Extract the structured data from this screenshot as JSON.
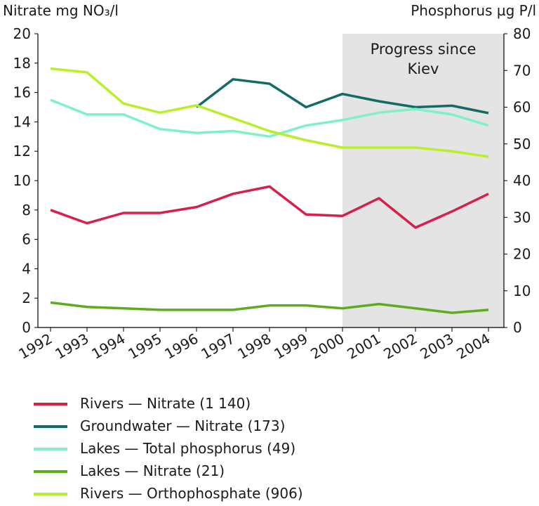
{
  "chart_data": {
    "type": "line",
    "title": "",
    "left_axis_label": "Nitrate mg NO₃/l",
    "right_axis_label": "Phosphorus µg P/l",
    "categories": [
      "1992",
      "1993",
      "1994",
      "1995",
      "1996",
      "1997",
      "1998",
      "1999",
      "2000",
      "2001",
      "2002",
      "2003",
      "2004"
    ],
    "left_ylim": [
      0,
      20
    ],
    "left_ticks": [
      0,
      2,
      4,
      6,
      8,
      10,
      12,
      14,
      16,
      18,
      20
    ],
    "right_ylim": [
      0,
      80
    ],
    "right_ticks": [
      0,
      10,
      20,
      30,
      40,
      50,
      60,
      70,
      80
    ],
    "shaded_region": {
      "from": "2000",
      "to": "2004",
      "label_line1": "Progress since",
      "label_line2": "Kiev"
    },
    "series": [
      {
        "name": "Rivers — Nitrate (1 140)",
        "axis": "left",
        "color": "#d81f4c",
        "values": [
          8.0,
          7.1,
          7.8,
          7.8,
          8.2,
          9.1,
          9.6,
          7.7,
          7.6,
          8.8,
          6.8,
          7.9,
          9.1
        ]
      },
      {
        "name": "Groundwater — Nitrate (173)",
        "axis": "left",
        "color": "#136b66",
        "values": [
          null,
          null,
          null,
          null,
          15.0,
          16.9,
          16.6,
          15.0,
          15.9,
          15.4,
          15.0,
          15.1,
          14.6
        ]
      },
      {
        "name": "Lakes — Total phosphorus (49)",
        "axis": "right",
        "color": "#7ef2c4",
        "values": [
          62,
          58,
          58,
          54,
          53,
          53.5,
          52,
          55,
          56.5,
          58.5,
          59.5,
          58,
          55
        ]
      },
      {
        "name": "Lakes — Nitrate (21)",
        "axis": "left",
        "color": "#5fab1d",
        "values": [
          1.7,
          1.4,
          1.3,
          1.2,
          1.2,
          1.2,
          1.5,
          1.5,
          1.3,
          1.6,
          1.3,
          1.0,
          1.2
        ]
      },
      {
        "name": "Rivers — Orthophosphate (906)",
        "axis": "right",
        "color": "#b7ef2a",
        "values": [
          70.5,
          69.5,
          61,
          58.5,
          60.5,
          57,
          53.5,
          51,
          49,
          49,
          49,
          48,
          46.5
        ]
      }
    ]
  }
}
